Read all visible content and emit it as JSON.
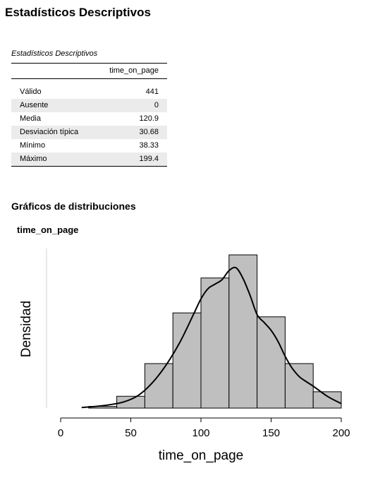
{
  "page": {
    "title": "Estadísticos Descriptivos"
  },
  "stats_table": {
    "caption": "Estadísticos Descriptivos",
    "column_header": "time_on_page",
    "rows": [
      {
        "label": "Válido",
        "value": "441"
      },
      {
        "label": "Ausente",
        "value": "0"
      },
      {
        "label": "Media",
        "value": "120.9"
      },
      {
        "label": "Desviación típica",
        "value": "30.68"
      },
      {
        "label": "Mínimo",
        "value": "38.33"
      },
      {
        "label": "Máximo",
        "value": "199.4"
      }
    ]
  },
  "distributions": {
    "section_title": "Gráficos de distribuciones",
    "plot_title": "time_on_page"
  },
  "chart_data": {
    "type": "bar",
    "subtype": "histogram_with_density",
    "xlabel": "time_on_page",
    "ylabel": "Densidad",
    "xlim": [
      0,
      200
    ],
    "xticks": [
      0,
      50,
      100,
      150,
      200
    ],
    "y_axis_ticks_shown": false,
    "bar_color": "#bfbfbf",
    "bins": [
      {
        "start": 20,
        "end": 40,
        "density": 0.0003
      },
      {
        "start": 40,
        "end": 60,
        "density": 0.0021
      },
      {
        "start": 60,
        "end": 80,
        "density": 0.0079
      },
      {
        "start": 80,
        "end": 100,
        "density": 0.0169
      },
      {
        "start": 100,
        "end": 120,
        "density": 0.0231
      },
      {
        "start": 120,
        "end": 140,
        "density": 0.0272
      },
      {
        "start": 140,
        "end": 160,
        "density": 0.0162
      },
      {
        "start": 160,
        "end": 180,
        "density": 0.0079
      },
      {
        "start": 180,
        "end": 200,
        "density": 0.0029
      }
    ],
    "density_curve": {
      "x": [
        15,
        25,
        35,
        45,
        55,
        65,
        75,
        85,
        95,
        100,
        105,
        110,
        115,
        120,
        125,
        130,
        135,
        140,
        145,
        150,
        155,
        160,
        165,
        170,
        175,
        180,
        190,
        200
      ],
      "y": [
        0.0001,
        0.0003,
        0.0006,
        0.0011,
        0.0022,
        0.0044,
        0.0076,
        0.0117,
        0.0168,
        0.0194,
        0.0212,
        0.022,
        0.0228,
        0.0244,
        0.0249,
        0.023,
        0.02,
        0.0166,
        0.0152,
        0.0138,
        0.0118,
        0.0092,
        0.0071,
        0.0056,
        0.0047,
        0.0039,
        0.0021,
        0.0008
      ]
    },
    "ylim": [
      0,
      0.0272
    ]
  }
}
